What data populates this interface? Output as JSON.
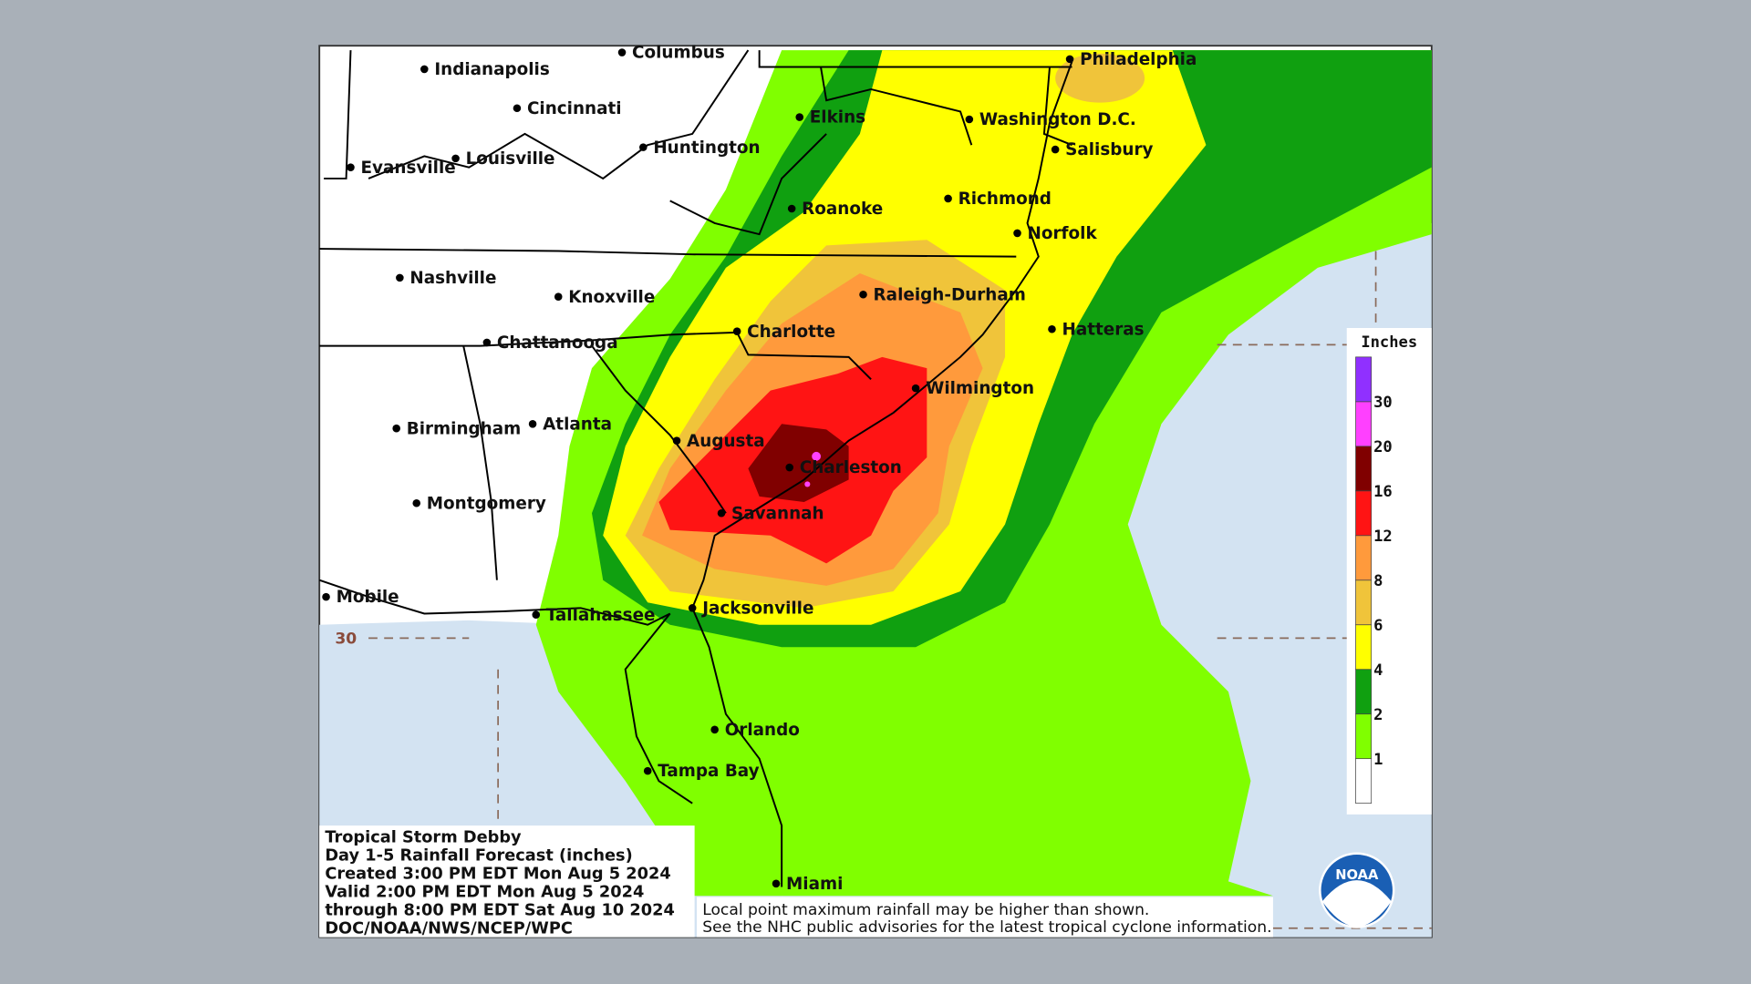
{
  "map": {
    "cities": [
      "Indianapolis",
      "Columbus",
      "Cincinnati",
      "Elkins",
      "Philadelphia",
      "Washington D.C.",
      "Salisbury",
      "Huntington",
      "Louisville",
      "Evansville",
      "Roanoke",
      "Richmond",
      "Norfolk",
      "Nashville",
      "Knoxville",
      "Raleigh-Durham",
      "Hatteras",
      "Charlotte",
      "Chattanooga",
      "Wilmington",
      "Birmingham",
      "Atlanta",
      "Augusta",
      "Charleston",
      "Montgomery",
      "Savannah",
      "Mobile",
      "Tallahassee",
      "Jacksonville",
      "Orlando",
      "Tampa Bay",
      "Miami"
    ],
    "latitude_label": "30",
    "legend": {
      "title": "Inches",
      "ticks": [
        1,
        2,
        4,
        6,
        8,
        12,
        16,
        20,
        30
      ],
      "colors": [
        "#ffffff",
        "#80ff00",
        "#10a010",
        "#ffff00",
        "#f0c43a",
        "#ff9a3c",
        "#ff1414",
        "#800000",
        "#ff40ff",
        "#9030ff"
      ]
    },
    "info": [
      "Tropical Storm Debby",
      "Day 1-5 Rainfall Forecast (inches)",
      "Created 3:00 PM EDT Mon Aug 5 2024",
      "Valid 2:00 PM EDT Mon Aug 5 2024",
      "through 8:00 PM EDT Sat Aug 10 2024",
      "DOC/NOAA/NWS/NCEP/WPC"
    ],
    "footnote": [
      "Local point maximum rainfall may be higher than shown.",
      "See the NHC public advisories for the latest tropical cyclone information."
    ],
    "logo": "NOAA"
  }
}
